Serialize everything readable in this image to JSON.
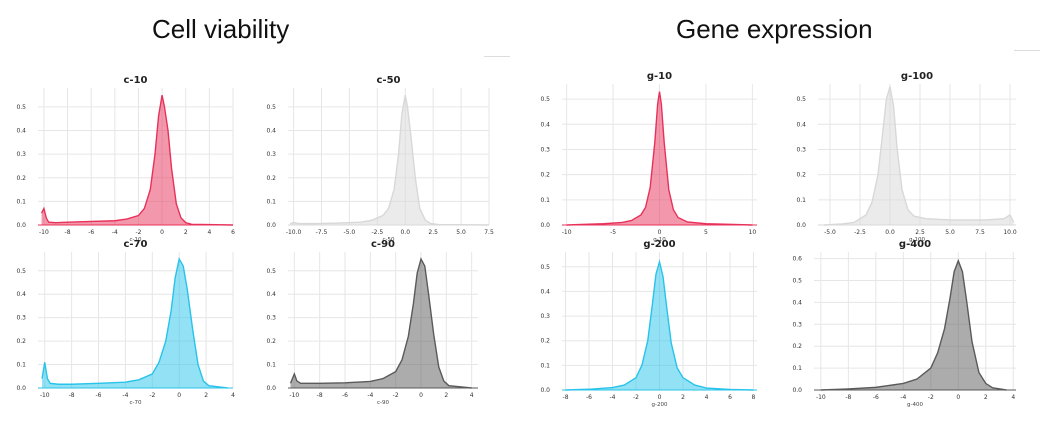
{
  "headings": {
    "left": "Cell viability",
    "right": "Gene expression"
  },
  "colors": {
    "red": "#e8315a",
    "gray": "#d8d8d8",
    "cyan": "#28c3ea",
    "dark": "#5a5a5a",
    "grid": "#e6e6e6"
  },
  "chart_data": [
    {
      "type": "area",
      "title": "c-10",
      "xlabel": "c-10",
      "color": "#e8315a",
      "xlim": [
        -10.5,
        6
      ],
      "ylim": [
        0,
        0.58
      ],
      "xticks": [
        -10,
        -8,
        -6,
        -4,
        -2,
        0,
        2,
        4,
        6
      ],
      "yticks": [
        0.0,
        0.1,
        0.2,
        0.3,
        0.4,
        0.5
      ],
      "x": [
        -10.2,
        -10.0,
        -9.8,
        -9.6,
        -9.0,
        -8.0,
        -6.0,
        -4.0,
        -3.0,
        -2.0,
        -1.5,
        -1.0,
        -0.6,
        -0.3,
        0.0,
        0.2,
        0.5,
        0.8,
        1.2,
        1.6,
        2.0,
        2.5,
        6.0
      ],
      "y": [
        0.05,
        0.07,
        0.03,
        0.012,
        0.01,
        0.012,
        0.015,
        0.018,
        0.025,
        0.04,
        0.07,
        0.15,
        0.3,
        0.46,
        0.55,
        0.5,
        0.4,
        0.24,
        0.09,
        0.03,
        0.01,
        0.003,
        0.0
      ]
    },
    {
      "type": "area",
      "title": "c-50",
      "xlabel": "c-50",
      "color": "#d8d8d8",
      "xlim": [
        -10.5,
        7.5
      ],
      "ylim": [
        0,
        0.58
      ],
      "xticks": [
        -10.0,
        -7.5,
        -5.0,
        -2.5,
        0.0,
        2.5,
        5.0,
        7.5
      ],
      "yticks": [
        0.0,
        0.1,
        0.2,
        0.3,
        0.4,
        0.5
      ],
      "x": [
        -10.3,
        -10.0,
        -9.5,
        -8.0,
        -6.0,
        -4.0,
        -3.0,
        -2.0,
        -1.5,
        -1.0,
        -0.6,
        -0.3,
        0.0,
        0.2,
        0.5,
        0.9,
        1.3,
        1.8,
        2.3,
        3.0,
        7.5
      ],
      "y": [
        0.005,
        0.01,
        0.006,
        0.006,
        0.008,
        0.012,
        0.02,
        0.04,
        0.07,
        0.15,
        0.3,
        0.47,
        0.55,
        0.5,
        0.38,
        0.2,
        0.07,
        0.02,
        0.006,
        0.002,
        0.0
      ]
    },
    {
      "type": "area",
      "title": "c-70",
      "xlabel": "c-70",
      "color": "#28c3ea",
      "xlim": [
        -10.5,
        4
      ],
      "ylim": [
        0,
        0.58
      ],
      "xticks": [
        -10,
        -8,
        -6,
        -4,
        -2,
        0,
        2,
        4
      ],
      "yticks": [
        0.0,
        0.1,
        0.2,
        0.3,
        0.4,
        0.5
      ],
      "x": [
        -10.2,
        -10.0,
        -9.8,
        -9.6,
        -9.0,
        -8.0,
        -6.0,
        -4.0,
        -3.0,
        -2.0,
        -1.5,
        -1.0,
        -0.6,
        -0.3,
        0.0,
        0.3,
        0.6,
        1.0,
        1.4,
        1.8,
        2.2,
        3.6
      ],
      "y": [
        0.04,
        0.11,
        0.04,
        0.02,
        0.016,
        0.016,
        0.02,
        0.025,
        0.035,
        0.06,
        0.11,
        0.2,
        0.33,
        0.47,
        0.55,
        0.52,
        0.42,
        0.25,
        0.1,
        0.03,
        0.01,
        0.0
      ]
    },
    {
      "type": "area",
      "title": "c-90",
      "xlabel": "c-90",
      "color": "#5a5a5a",
      "xlim": [
        -10.5,
        4.5
      ],
      "ylim": [
        0,
        0.58
      ],
      "xticks": [
        -10,
        -8,
        -6,
        -4,
        -2,
        0,
        2,
        4
      ],
      "yticks": [
        0.0,
        0.1,
        0.2,
        0.3,
        0.4,
        0.5
      ],
      "x": [
        -10.3,
        -10.0,
        -9.8,
        -9.5,
        -9.0,
        -8.0,
        -6.0,
        -4.0,
        -3.0,
        -2.0,
        -1.5,
        -1.0,
        -0.6,
        -0.3,
        0.0,
        0.3,
        0.6,
        1.0,
        1.4,
        1.8,
        2.2,
        4.0
      ],
      "y": [
        0.02,
        0.06,
        0.03,
        0.02,
        0.02,
        0.02,
        0.022,
        0.028,
        0.04,
        0.07,
        0.12,
        0.22,
        0.36,
        0.49,
        0.55,
        0.52,
        0.4,
        0.23,
        0.09,
        0.03,
        0.01,
        0.0
      ]
    },
    {
      "type": "area",
      "title": "g-10",
      "xlabel": "g-10",
      "color": "#e8315a",
      "xlim": [
        -10.5,
        10.5
      ],
      "ylim": [
        0,
        0.56
      ],
      "xticks": [
        -10,
        -5,
        0,
        5,
        10
      ],
      "yticks": [
        0.0,
        0.1,
        0.2,
        0.3,
        0.4,
        0.5
      ],
      "x": [
        -10.0,
        -6.0,
        -4.0,
        -3.0,
        -2.0,
        -1.5,
        -1.0,
        -0.5,
        -0.2,
        0.0,
        0.2,
        0.5,
        1.0,
        1.5,
        2.0,
        3.0,
        5.0,
        10.0
      ],
      "y": [
        0.0,
        0.005,
        0.01,
        0.018,
        0.04,
        0.07,
        0.15,
        0.33,
        0.48,
        0.53,
        0.48,
        0.33,
        0.14,
        0.06,
        0.03,
        0.012,
        0.005,
        0.0
      ]
    },
    {
      "type": "area",
      "title": "g-100",
      "xlabel": "g-100",
      "color": "#d8d8d8",
      "xlim": [
        -6,
        10.5
      ],
      "ylim": [
        0,
        0.56
      ],
      "xticks": [
        -5.0,
        -2.5,
        0.0,
        2.5,
        5.0,
        7.5,
        10.0
      ],
      "yticks": [
        0.0,
        0.1,
        0.2,
        0.3,
        0.4,
        0.5
      ],
      "x": [
        -5.5,
        -4.0,
        -3.0,
        -2.0,
        -1.5,
        -1.0,
        -0.6,
        -0.3,
        0.0,
        0.3,
        0.6,
        1.0,
        1.5,
        2.0,
        3.0,
        5.0,
        8.0,
        9.5,
        10.0,
        10.3
      ],
      "y": [
        0.0,
        0.004,
        0.01,
        0.04,
        0.09,
        0.2,
        0.37,
        0.5,
        0.55,
        0.47,
        0.3,
        0.14,
        0.06,
        0.035,
        0.025,
        0.02,
        0.02,
        0.025,
        0.04,
        0.01
      ]
    },
    {
      "type": "area",
      "title": "g-200",
      "xlabel": "g-200",
      "color": "#28c3ea",
      "xlim": [
        -8.3,
        8.3
      ],
      "ylim": [
        0,
        0.56
      ],
      "xticks": [
        -8,
        -6,
        -4,
        -2,
        0,
        2,
        4,
        6,
        8
      ],
      "yticks": [
        0.0,
        0.1,
        0.2,
        0.3,
        0.4,
        0.5
      ],
      "x": [
        -8.0,
        -6.0,
        -4.0,
        -3.0,
        -2.0,
        -1.5,
        -1.0,
        -0.6,
        -0.3,
        0.0,
        0.3,
        0.6,
        1.0,
        1.5,
        2.0,
        3.0,
        4.0,
        6.0,
        8.0
      ],
      "y": [
        0.0,
        0.003,
        0.01,
        0.02,
        0.05,
        0.1,
        0.2,
        0.35,
        0.47,
        0.52,
        0.46,
        0.34,
        0.19,
        0.09,
        0.05,
        0.02,
        0.008,
        0.002,
        0.0
      ]
    },
    {
      "type": "area",
      "title": "g-400",
      "xlabel": "g-400",
      "color": "#5a5a5a",
      "xlim": [
        -10.5,
        4.2
      ],
      "ylim": [
        0,
        0.63
      ],
      "xticks": [
        -10,
        -8,
        -6,
        -4,
        -2,
        0,
        2,
        4
      ],
      "yticks": [
        0.0,
        0.1,
        0.2,
        0.3,
        0.4,
        0.5,
        0.6
      ],
      "x": [
        -10.0,
        -8.0,
        -6.0,
        -4.0,
        -3.0,
        -2.0,
        -1.5,
        -1.0,
        -0.6,
        -0.3,
        0.0,
        0.3,
        0.6,
        1.0,
        1.5,
        2.0,
        2.5,
        3.5
      ],
      "y": [
        0.0,
        0.005,
        0.012,
        0.03,
        0.05,
        0.1,
        0.17,
        0.28,
        0.42,
        0.54,
        0.59,
        0.54,
        0.41,
        0.22,
        0.08,
        0.03,
        0.01,
        0.0
      ]
    }
  ]
}
